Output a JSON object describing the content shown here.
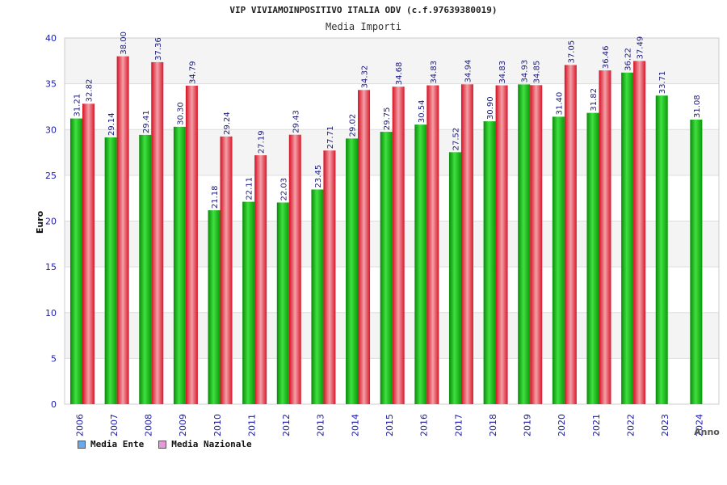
{
  "chart_data": {
    "type": "bar",
    "title": "VIP VIVIAMOINPOSITIVO ITALIA ODV (c.f.97639380019)",
    "subtitle": "Media Importi",
    "xlabel": "Anno",
    "ylabel": "Euro",
    "ylim": [
      0,
      40
    ],
    "yticks": [
      0,
      5,
      10,
      15,
      20,
      25,
      30,
      35,
      40
    ],
    "categories": [
      "2006",
      "2007",
      "2008",
      "2009",
      "2010",
      "2011",
      "2012",
      "2013",
      "2014",
      "2015",
      "2016",
      "2017",
      "2018",
      "2019",
      "2020",
      "2021",
      "2022",
      "2023",
      "2024"
    ],
    "series": [
      {
        "name": "Media Ente",
        "color": "#1db31d",
        "values": [
          31.21,
          29.14,
          29.41,
          30.3,
          21.18,
          22.11,
          22.03,
          23.45,
          29.02,
          29.75,
          30.54,
          27.52,
          30.9,
          34.93,
          31.4,
          31.82,
          36.22,
          33.71,
          31.08
        ],
        "labels": [
          "31.21",
          "29.14",
          "29.41",
          "30.30",
          "21.18",
          "22.11",
          "22.03",
          "23.45",
          "29.02",
          "29.75",
          "30.54",
          "27.52",
          "30.90",
          "34.93",
          "31.40",
          "31.82",
          "36.22",
          "33.71",
          "31.08"
        ]
      },
      {
        "name": "Media Nazionale",
        "color": "#e8283a",
        "values": [
          32.82,
          38.0,
          37.36,
          34.79,
          29.24,
          27.19,
          29.43,
          27.71,
          34.32,
          34.68,
          34.83,
          34.94,
          34.83,
          34.85,
          37.05,
          36.46,
          37.49,
          null,
          null
        ],
        "labels": [
          "32.82",
          "38.00",
          "37.36",
          "34.79",
          "29.24",
          "27.19",
          "29.43",
          "27.71",
          "34.32",
          "34.68",
          "34.83",
          "34.94",
          "34.83",
          "34.85",
          "37.05",
          "36.46",
          "37.49",
          null,
          null
        ]
      }
    ],
    "legend": [
      {
        "label": "Media Ente",
        "swatch": "#6fa8e8"
      },
      {
        "label": "Media Nazionale",
        "swatch": "#e39ad6"
      }
    ],
    "grid": true,
    "legend_position": "bottom-left"
  }
}
